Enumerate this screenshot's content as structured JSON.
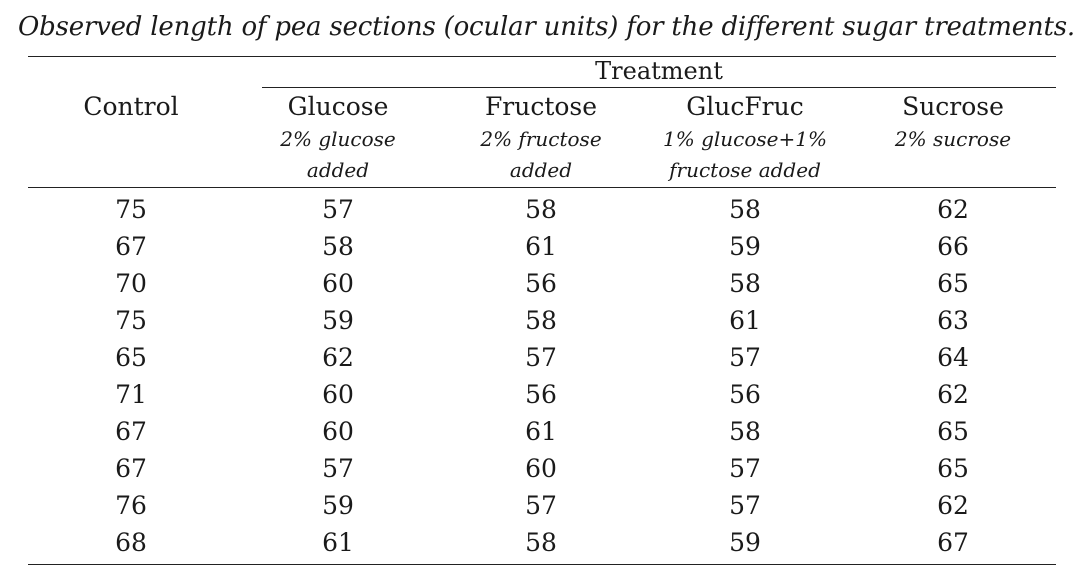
{
  "caption": "Observed length of pea sections (ocular units) for the different sugar treatments.",
  "group_header": "Treatment",
  "columns": [
    {
      "name": "Control",
      "desc": ""
    },
    {
      "name": "Glucose",
      "desc": "2% glucose\nadded"
    },
    {
      "name": "Fructose",
      "desc": "2% fructose\nadded"
    },
    {
      "name": "GlucFruc",
      "desc": "1% glucose+1%\nfructose added"
    },
    {
      "name": "Sucrose",
      "desc": "2% sucrose"
    }
  ],
  "rows": [
    [
      "75",
      "57",
      "58",
      "58",
      "62"
    ],
    [
      "67",
      "58",
      "61",
      "59",
      "66"
    ],
    [
      "70",
      "60",
      "56",
      "58",
      "65"
    ],
    [
      "75",
      "59",
      "58",
      "61",
      "63"
    ],
    [
      "65",
      "62",
      "57",
      "57",
      "64"
    ],
    [
      "71",
      "60",
      "56",
      "56",
      "62"
    ],
    [
      "67",
      "60",
      "61",
      "58",
      "65"
    ],
    [
      "67",
      "57",
      "60",
      "57",
      "65"
    ],
    [
      "76",
      "59",
      "57",
      "57",
      "62"
    ],
    [
      "68",
      "61",
      "58",
      "59",
      "67"
    ]
  ]
}
